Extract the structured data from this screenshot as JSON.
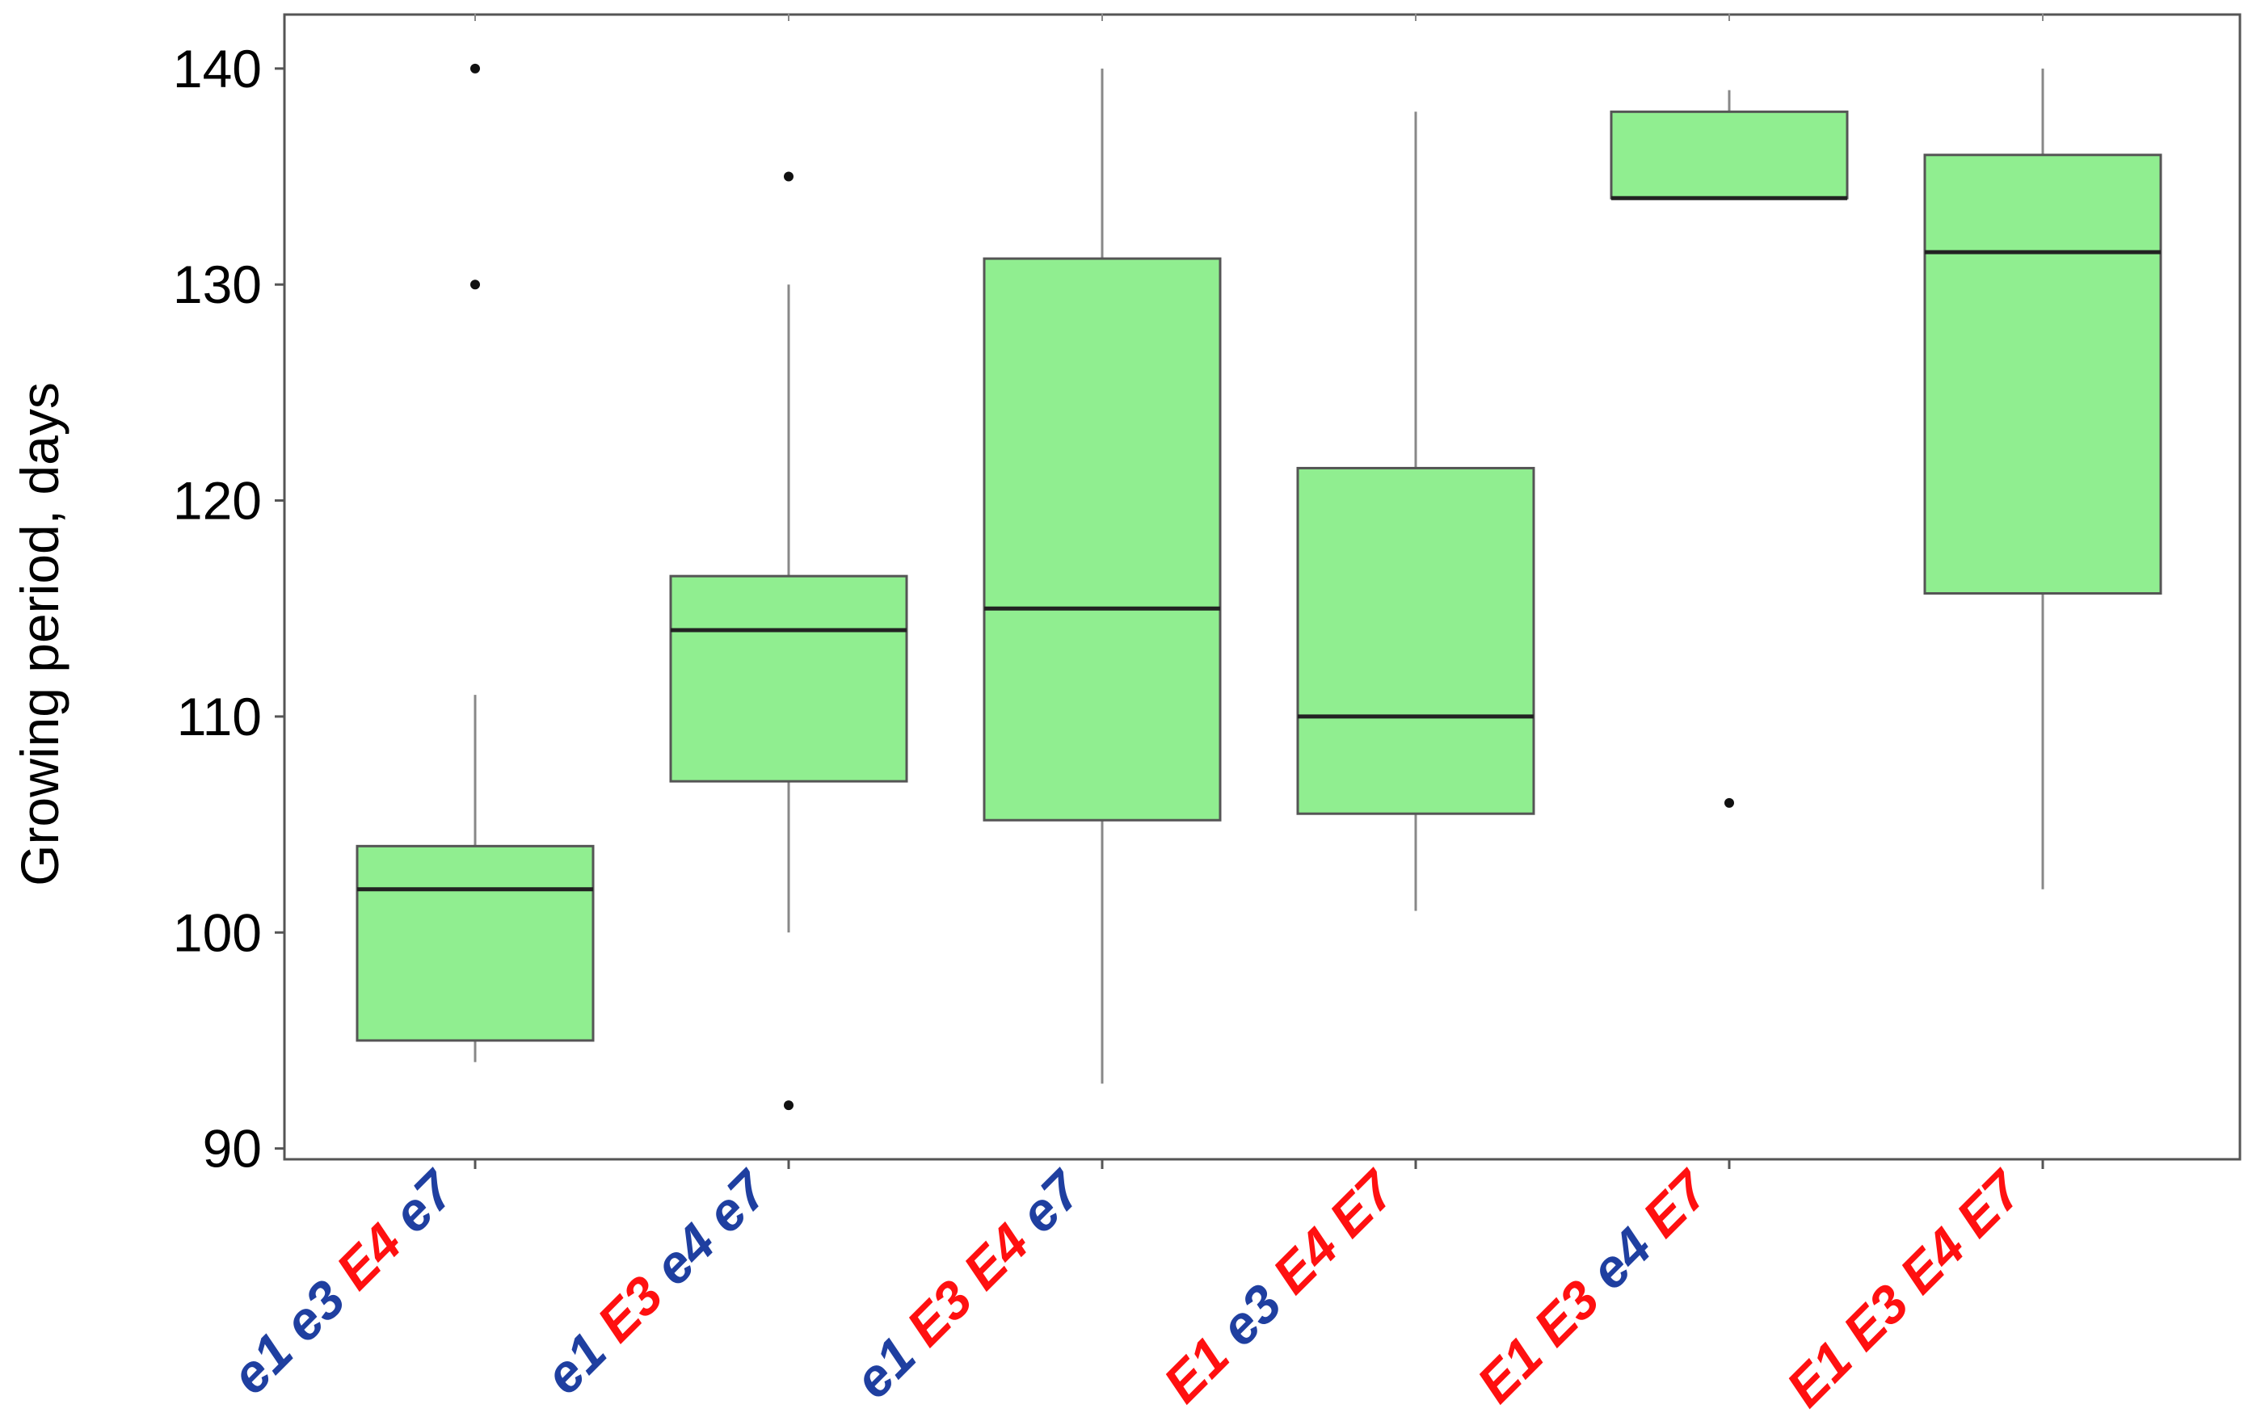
{
  "chart_data": {
    "type": "box",
    "title": "",
    "xlabel": "",
    "ylabel": "Growing period, days",
    "ylim": [
      89.5,
      142.5
    ],
    "yticks": [
      90,
      100,
      110,
      120,
      130,
      140
    ],
    "grid": false,
    "colors": {
      "box_fill": "#90ee90",
      "box_stroke": "#555555",
      "median": "#222222",
      "whisker": "#888888",
      "outlier": "#111111",
      "recessive_allele": "#1f3fa0",
      "dominant_allele": "#ff1010"
    },
    "categories": [
      {
        "name": "e1 e3 E4 e7",
        "alleles": [
          {
            "text": "e1",
            "kind": "recessive"
          },
          {
            "text": "e3",
            "kind": "recessive"
          },
          {
            "text": "E4",
            "kind": "dominant"
          },
          {
            "text": "e7",
            "kind": "recessive"
          }
        ],
        "whisker_low": 94,
        "q1": 95,
        "median": 102,
        "q3": 104,
        "whisker_high": 111,
        "outliers": [
          130,
          140
        ]
      },
      {
        "name": "e1 E3 e4 e7",
        "alleles": [
          {
            "text": "e1",
            "kind": "recessive"
          },
          {
            "text": "E3",
            "kind": "dominant"
          },
          {
            "text": "e4",
            "kind": "recessive"
          },
          {
            "text": "e7",
            "kind": "recessive"
          }
        ],
        "whisker_low": 100,
        "q1": 107,
        "median": 114,
        "q3": 116.5,
        "whisker_high": 130,
        "outliers": [
          92,
          135
        ]
      },
      {
        "name": "e1 E3 E4 e7",
        "alleles": [
          {
            "text": "e1",
            "kind": "recessive"
          },
          {
            "text": "E3",
            "kind": "dominant"
          },
          {
            "text": "E4",
            "kind": "dominant"
          },
          {
            "text": "e7",
            "kind": "recessive"
          }
        ],
        "whisker_low": 93,
        "q1": 105.2,
        "median": 115,
        "q3": 131.2,
        "whisker_high": 140,
        "outliers": []
      },
      {
        "name": "E1 e3 E4 E7",
        "alleles": [
          {
            "text": "E1",
            "kind": "dominant"
          },
          {
            "text": "e3",
            "kind": "recessive"
          },
          {
            "text": "E4",
            "kind": "dominant"
          },
          {
            "text": "E7",
            "kind": "dominant"
          }
        ],
        "whisker_low": 101,
        "q1": 105.5,
        "median": 110,
        "q3": 121.5,
        "whisker_high": 138,
        "outliers": []
      },
      {
        "name": "E1 E3 e4 E7",
        "alleles": [
          {
            "text": "E1",
            "kind": "dominant"
          },
          {
            "text": "E3",
            "kind": "dominant"
          },
          {
            "text": "e4",
            "kind": "recessive"
          },
          {
            "text": "E7",
            "kind": "dominant"
          }
        ],
        "whisker_low": 134,
        "q1": 134,
        "median": 134,
        "q3": 138,
        "whisker_high": 139,
        "outliers": [
          106
        ]
      },
      {
        "name": "E1 E3 E4 E7",
        "alleles": [
          {
            "text": "E1",
            "kind": "dominant"
          },
          {
            "text": "E3",
            "kind": "dominant"
          },
          {
            "text": "E4",
            "kind": "dominant"
          },
          {
            "text": "E7",
            "kind": "dominant"
          }
        ],
        "whisker_low": 102,
        "q1": 115.7,
        "median": 131.5,
        "q3": 136,
        "whisker_high": 140,
        "outliers": []
      }
    ]
  }
}
